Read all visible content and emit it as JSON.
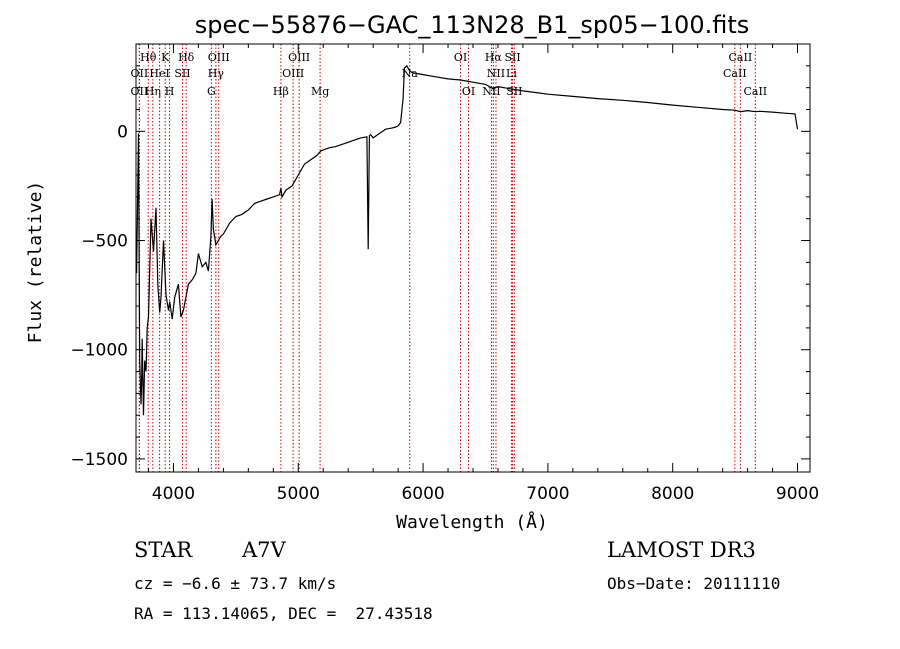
{
  "chart_data": {
    "type": "line",
    "title": "spec−55876−GAC_113N28_B1_sp05−100.fits",
    "xlabel": "Wavelength (Å)",
    "ylabel": "Flux (relative)",
    "xlim": [
      3700,
      9100
    ],
    "ylim": [
      -1560,
      400
    ],
    "x_ticks": [
      4000,
      5000,
      6000,
      7000,
      8000,
      9000
    ],
    "x_tick_labels": [
      "4000",
      "5000",
      "6000",
      "7000",
      "8000",
      "9000"
    ],
    "y_ticks": [
      0,
      -500,
      -1000,
      -1500
    ],
    "y_tick_labels": [
      "0",
      "−500",
      "−1000",
      "−1500"
    ],
    "grid": false,
    "line_color": "#000000",
    "marker_color": "#cc0000",
    "series": [
      {
        "x": [
          3705,
          3720,
          3730,
          3740,
          3745,
          3750,
          3760,
          3770,
          3780,
          3790,
          3800,
          3820,
          3840,
          3860,
          3875,
          3890,
          3900,
          3920,
          3940,
          3960,
          3970,
          3990,
          4010,
          4040,
          4060,
          4080,
          4100,
          4120,
          4150,
          4180,
          4200,
          4230,
          4260,
          4280,
          4300,
          4310,
          4320,
          4340,
          4360,
          4380,
          4400,
          4450,
          4500,
          4550,
          4600,
          4650,
          4700,
          4750,
          4800,
          4850,
          4861,
          4870,
          4900,
          4950,
          5000,
          5050,
          5100,
          5150,
          5180,
          5200,
          5250,
          5300,
          5350,
          5400,
          5450,
          5500,
          5550,
          5560,
          5570,
          5580,
          5600,
          5650,
          5700,
          5750,
          5780,
          5800,
          5820,
          5840,
          5850,
          5870,
          5890,
          5910,
          5950,
          6000,
          6100,
          6200,
          6300,
          6400,
          6500,
          6563,
          6600,
          6700,
          6800,
          6900,
          7000,
          7200,
          7400,
          7600,
          7800,
          8000,
          8200,
          8400,
          8500,
          8542,
          8600,
          8662,
          8700,
          8800,
          8900,
          8980,
          9000
        ],
        "y": [
          -650,
          -10,
          -1050,
          -1250,
          -1150,
          -950,
          -1300,
          -1050,
          -1100,
          -900,
          -850,
          -400,
          -550,
          -350,
          -700,
          -830,
          -760,
          -500,
          -750,
          -820,
          -780,
          -860,
          -760,
          -700,
          -850,
          -820,
          -760,
          -700,
          -680,
          -650,
          -560,
          -620,
          -600,
          -640,
          -480,
          -310,
          -450,
          -520,
          -500,
          -480,
          -470,
          -420,
          -390,
          -380,
          -360,
          -330,
          -320,
          -310,
          -300,
          -290,
          -260,
          -300,
          -270,
          -250,
          -200,
          -150,
          -130,
          -110,
          -90,
          -85,
          -75,
          -70,
          -60,
          -50,
          -40,
          -30,
          -25,
          -540,
          -20,
          -15,
          -30,
          -10,
          10,
          15,
          20,
          25,
          40,
          150,
          290,
          300,
          280,
          270,
          265,
          260,
          250,
          240,
          235,
          225,
          215,
          195,
          205,
          195,
          185,
          178,
          170,
          160,
          150,
          142,
          132,
          120,
          110,
          100,
          97,
          90,
          95,
          90,
          92,
          88,
          83,
          80,
          10
        ]
      }
    ],
    "spectral_lines": [
      {
        "name": "Hθ",
        "wl": 3798,
        "row": 1
      },
      {
        "name": "OII",
        "wl": 3727,
        "row": 2
      },
      {
        "name": "OII",
        "wl": 3727,
        "row": 3
      },
      {
        "name": "Hη",
        "wl": 3835,
        "row": 3
      },
      {
        "name": "K",
        "wl": 3934,
        "row": 1
      },
      {
        "name": "HeI",
        "wl": 3889,
        "row": 2
      },
      {
        "name": "H",
        "wl": 3969,
        "row": 3
      },
      {
        "name": "Hδ",
        "wl": 4102,
        "row": 1
      },
      {
        "name": "SII",
        "wl": 4072,
        "row": 2
      },
      {
        "name": "OIII",
        "wl": 4363,
        "row": 1
      },
      {
        "name": "Hγ",
        "wl": 4340,
        "row": 2
      },
      {
        "name": "G",
        "wl": 4304,
        "row": 3
      },
      {
        "name": "Hβ",
        "wl": 4861,
        "row": 3
      },
      {
        "name": "OIII",
        "wl": 5007,
        "row": 1
      },
      {
        "name": "OIII",
        "wl": 4959,
        "row": 2
      },
      {
        "name": "Mg",
        "wl": 5175,
        "row": 3
      },
      {
        "name": "Na",
        "wl": 5893,
        "row": 2
      },
      {
        "name": "OI",
        "wl": 6300,
        "row": 1
      },
      {
        "name": "OI",
        "wl": 6364,
        "row": 3
      },
      {
        "name": "Hα",
        "wl": 6563,
        "row": 1
      },
      {
        "name": "SII",
        "wl": 6717,
        "row": 1
      },
      {
        "name": "NII",
        "wl": 6584,
        "row": 2
      },
      {
        "name": "Li",
        "wl": 6708,
        "row": 2
      },
      {
        "name": "NII",
        "wl": 6548,
        "row": 3
      },
      {
        "name": "SII",
        "wl": 6731,
        "row": 3
      },
      {
        "name": "CaII",
        "wl": 8542,
        "row": 1
      },
      {
        "name": "CaII",
        "wl": 8498,
        "row": 2
      },
      {
        "name": "CaII",
        "wl": 8662,
        "row": 3
      }
    ]
  },
  "info": {
    "class_label": "STAR",
    "subclass": "A7V",
    "survey": "LAMOST DR3",
    "cz": "cz = −6.6 ± 73.7 km/s",
    "obs_date": "Obs−Date: 20111110",
    "coords": "RA = 113.14065, DEC =  27.43518"
  }
}
